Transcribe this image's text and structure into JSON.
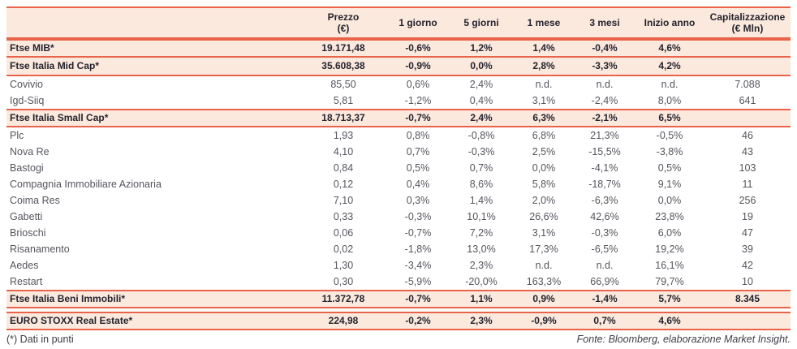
{
  "colors": {
    "accent": "#e9624a",
    "row_highlight": "#fce9dd",
    "text_dark": "#23232e",
    "text_stock": "#55555e"
  },
  "table": {
    "columns": [
      {
        "label": "",
        "sub": ""
      },
      {
        "label": "Prezzo",
        "sub": "(€)"
      },
      {
        "label": "1 giorno",
        "sub": ""
      },
      {
        "label": "5 giorni",
        "sub": ""
      },
      {
        "label": "1 mese",
        "sub": ""
      },
      {
        "label": "3 mesi",
        "sub": ""
      },
      {
        "label": "Inizio anno",
        "sub": ""
      },
      {
        "label": "Capitalizzazione",
        "sub": "(€ Mln)"
      }
    ],
    "blocks": [
      {
        "rows": [
          {
            "name": "Ftse MIB*",
            "type": "index",
            "values": [
              "19.171,48",
              "-0,6%",
              "1,2%",
              "1,4%",
              "-0,4%",
              "4,6%",
              ""
            ]
          },
          {
            "name": "Ftse Italia Mid Cap*",
            "type": "index",
            "values": [
              "35.608,38",
              "-0,9%",
              "0,0%",
              "2,8%",
              "-3,3%",
              "4,2%",
              ""
            ]
          },
          {
            "name": "Covivio",
            "type": "stock",
            "values": [
              "85,50",
              "0,6%",
              "2,4%",
              "n.d.",
              "n.d.",
              "n.d.",
              "7.088"
            ]
          },
          {
            "name": "Igd-Siiq",
            "type": "stock",
            "values": [
              "5,81",
              "-1,2%",
              "0,4%",
              "3,1%",
              "-2,4%",
              "8,0%",
              "641"
            ]
          },
          {
            "name": "Ftse Italia Small Cap*",
            "type": "index",
            "values": [
              "18.713,37",
              "-0,7%",
              "2,4%",
              "6,3%",
              "-2,1%",
              "6,5%",
              ""
            ]
          },
          {
            "name": "Plc",
            "type": "stock",
            "values": [
              "1,93",
              "0,8%",
              "-0,8%",
              "6,8%",
              "21,3%",
              "-0,5%",
              "46"
            ]
          },
          {
            "name": "Nova Re",
            "type": "stock",
            "values": [
              "4,10",
              "0,7%",
              "-0,3%",
              "2,5%",
              "-15,5%",
              "-3,8%",
              "43"
            ]
          },
          {
            "name": "Bastogi",
            "type": "stock",
            "values": [
              "0,84",
              "0,5%",
              "0,7%",
              "0,0%",
              "-4,1%",
              "0,5%",
              "103"
            ]
          },
          {
            "name": "Compagnia Immobiliare Azionaria",
            "type": "stock",
            "values": [
              "0,12",
              "0,4%",
              "8,6%",
              "5,8%",
              "-18,7%",
              "9,1%",
              "11"
            ]
          },
          {
            "name": "Coima Res",
            "type": "stock",
            "values": [
              "7,10",
              "0,3%",
              "1,4%",
              "2,0%",
              "-6,3%",
              "0,0%",
              "256"
            ]
          },
          {
            "name": "Gabetti",
            "type": "stock",
            "values": [
              "0,33",
              "-0,3%",
              "10,1%",
              "26,6%",
              "42,6%",
              "23,8%",
              "19"
            ]
          },
          {
            "name": "Brioschi",
            "type": "stock",
            "values": [
              "0,06",
              "-0,7%",
              "7,2%",
              "3,1%",
              "-0,3%",
              "6,0%",
              "47"
            ]
          },
          {
            "name": "Risanamento",
            "type": "stock",
            "values": [
              "0,02",
              "-1,8%",
              "13,0%",
              "17,3%",
              "-6,5%",
              "19,2%",
              "39"
            ]
          },
          {
            "name": "Aedes",
            "type": "stock",
            "values": [
              "1,30",
              "-3,4%",
              "2,3%",
              "n.d.",
              "n.d.",
              "16,1%",
              "42"
            ]
          },
          {
            "name": "Restart",
            "type": "stock",
            "values": [
              "0,30",
              "-5,9%",
              "-20,0%",
              "163,3%",
              "66,9%",
              "79,7%",
              "10"
            ]
          },
          {
            "name": "Ftse Italia Beni Immobili*",
            "type": "index",
            "values": [
              "11.372,78",
              "-0,7%",
              "1,1%",
              "0,9%",
              "-1,4%",
              "5,7%",
              "8.345"
            ]
          }
        ]
      },
      {
        "rows": [
          {
            "name": "EURO STOXX Real Estate*",
            "type": "index",
            "values": [
              "224,98",
              "-0,2%",
              "2,3%",
              "-0,9%",
              "0,7%",
              "4,6%",
              ""
            ]
          }
        ]
      }
    ]
  },
  "footer": {
    "note": "(*) Dati in punti",
    "source": "Fonte: Bloomberg, elaborazione Market Insight."
  }
}
